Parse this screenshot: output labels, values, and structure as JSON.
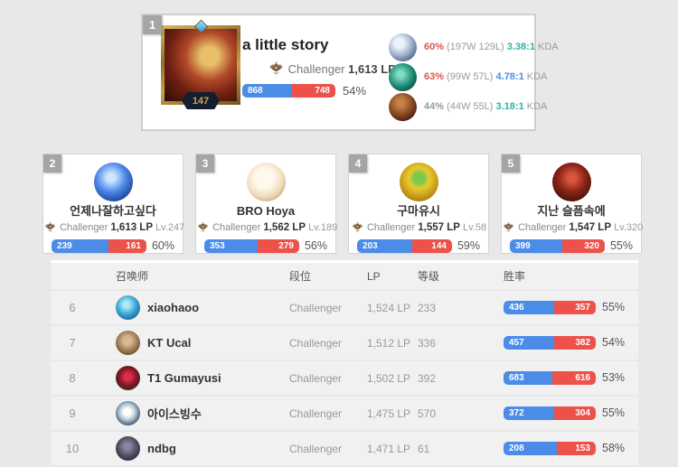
{
  "colors": {
    "win_blue": "#4a8ce8",
    "loss_red": "#ec524a",
    "winrate_red": "#e0544e",
    "winrate_gray": "#9a9a9a",
    "kda_teal": "#2eb3a2",
    "kda_blue": "#4a90e2"
  },
  "top_player": {
    "rank": "1",
    "level": "147",
    "name": "a little story",
    "tier": "Challenger",
    "lp": "1,613 LP",
    "wins": "868",
    "losses": "748",
    "win_pct": "54%",
    "win_ratio": 53.7,
    "kda_label": "KDA",
    "champions": [
      {
        "win_rate": "60%",
        "win_rate_color": "#e0544e",
        "record": "(197W 129L)",
        "kda": "3.38:1",
        "kda_color": "#2eb3a2"
      },
      {
        "win_rate": "63%",
        "win_rate_color": "#e0544e",
        "record": "(99W 57L)",
        "kda": "4.78:1",
        "kda_color": "#4a90e2"
      },
      {
        "win_rate": "44%",
        "win_rate_color": "#9a9a9a",
        "record": "(44W 55L)",
        "kda": "3.18:1",
        "kda_color": "#2eb3a2"
      }
    ]
  },
  "cards": [
    {
      "rank": "2",
      "name": "언제나잘하고싶다",
      "tier": "Challenger",
      "lp": "1,613 LP",
      "level": "Lv.247",
      "wins": "239",
      "losses": "161",
      "win_pct": "60%",
      "win_ratio": 59.8
    },
    {
      "rank": "3",
      "name": "BRO Hoya",
      "tier": "Challenger",
      "lp": "1,562 LP",
      "level": "Lv.189",
      "wins": "353",
      "losses": "279",
      "win_pct": "56%",
      "win_ratio": 55.9
    },
    {
      "rank": "4",
      "name": "구마유시",
      "tier": "Challenger",
      "lp": "1,557 LP",
      "level": "Lv.58",
      "wins": "203",
      "losses": "144",
      "win_pct": "59%",
      "win_ratio": 58.5
    },
    {
      "rank": "5",
      "name": "지난 슬픔속에",
      "tier": "Challenger",
      "lp": "1,547 LP",
      "level": "Lv.320",
      "wins": "399",
      "losses": "320",
      "win_pct": "55%",
      "win_ratio": 55.5
    }
  ],
  "table": {
    "headers": {
      "summoner": "召唤师",
      "tier": "段位",
      "lp": "LP",
      "level": "等级",
      "winrate": "胜率"
    },
    "rows": [
      {
        "rank": "6",
        "name": "xiaohaoo",
        "tier": "Challenger",
        "lp": "1,524 LP",
        "level": "233",
        "wins": "436",
        "losses": "357",
        "win_pct": "55%",
        "win_ratio": 55.0
      },
      {
        "rank": "7",
        "name": "KT Ucal",
        "tier": "Challenger",
        "lp": "1,512 LP",
        "level": "336",
        "wins": "457",
        "losses": "382",
        "win_pct": "54%",
        "win_ratio": 54.5
      },
      {
        "rank": "8",
        "name": "T1 Gumayusi",
        "tier": "Challenger",
        "lp": "1,502 LP",
        "level": "392",
        "wins": "683",
        "losses": "616",
        "win_pct": "53%",
        "win_ratio": 52.6
      },
      {
        "rank": "9",
        "name": "아이스빙수",
        "tier": "Challenger",
        "lp": "1,475 LP",
        "level": "570",
        "wins": "372",
        "losses": "304",
        "win_pct": "55%",
        "win_ratio": 55.0
      },
      {
        "rank": "10",
        "name": "ndbg",
        "tier": "Challenger",
        "lp": "1,471 LP",
        "level": "61",
        "wins": "208",
        "losses": "153",
        "win_pct": "58%",
        "win_ratio": 57.6
      }
    ]
  }
}
